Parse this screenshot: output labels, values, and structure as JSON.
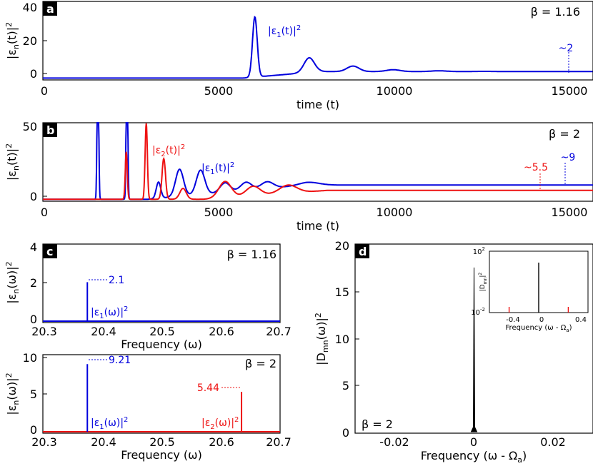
{
  "colors": {
    "series1": "#0000dd",
    "series2": "#ee1111",
    "black": "#000000"
  },
  "chart_data": [
    {
      "panel": "a",
      "type": "line",
      "xlabel": "time (t)",
      "ylabel": "|εn(t)|2",
      "xlim": [
        0,
        15700
      ],
      "ylim": [
        -3,
        40
      ],
      "xticks": [
        "0",
        "5000",
        "10000",
        "15000"
      ],
      "yticks": [
        "0",
        "20",
        "40"
      ],
      "beta_label": "β = 1.16",
      "series": [
        {
          "name": "|ε1(t)|2",
          "color": "#0000dd",
          "peaks": [
            [
              6050,
              33
            ],
            [
              7600,
              10
            ],
            [
              8850,
              5
            ],
            [
              10000,
              3
            ],
            [
              11300,
              2.4
            ],
            [
              12600,
              2.1
            ],
            [
              13900,
              2.0
            ],
            [
              15100,
              2.0
            ]
          ],
          "rise_start": 5700,
          "baseline": -2,
          "final": 2
        }
      ],
      "annotations": [
        {
          "text": "|ε1(t)|2",
          "x": 6250,
          "y": 28
        },
        {
          "text": "~2",
          "x": 15000,
          "y": 2
        }
      ]
    },
    {
      "panel": "b",
      "type": "line",
      "xlabel": "time (t)",
      "ylabel": "|εn(t)|2",
      "xlim": [
        0,
        15700
      ],
      "ylim": [
        -3,
        55
      ],
      "xticks": [
        "0",
        "5000",
        "10000",
        "15000"
      ],
      "yticks": [
        "0",
        "50"
      ],
      "beta_label": "β = 2",
      "series": [
        {
          "name": "|ε1(t)|2",
          "color": "#0000dd"
        },
        {
          "name": "|ε2(t)|2",
          "color": "#ee1111"
        }
      ],
      "annotations": [
        {
          "text": "|ε2(t)|2"
        },
        {
          "text": "|ε1(t)|2"
        },
        {
          "text": "~5.5",
          "x": 14000,
          "y": 5.5
        },
        {
          "text": "~9",
          "x": 14700,
          "y": 9
        }
      ]
    },
    {
      "panel": "c",
      "type": "line",
      "xlabel": "Frequency (ω)",
      "ylabel": "|εn(ω)|2",
      "xlim": [
        20.3,
        20.7
      ],
      "ylim": [
        0,
        4
      ],
      "xticks": [
        "20.3",
        "20.4",
        "20.5",
        "20.6",
        "20.7"
      ],
      "yticks": [
        "0",
        "2",
        "4"
      ],
      "beta_label": "β = 1.16",
      "series": [
        {
          "name": "|ε1(ω)|2",
          "color": "#0000dd",
          "x": [
            20.375
          ],
          "values": [
            2.1
          ]
        }
      ],
      "annotations": [
        {
          "text": "2.1"
        },
        {
          "text": "|ε1(ω)|2"
        }
      ]
    },
    {
      "panel": "c2",
      "type": "line",
      "xlabel": "Frequency (ω)",
      "ylabel": "|εn(ω)|2",
      "xlim": [
        20.3,
        20.7
      ],
      "ylim": [
        0,
        10.5
      ],
      "xticks": [
        "20.3",
        "20.4",
        "20.5",
        "20.6",
        "20.7"
      ],
      "yticks": [
        "0",
        "5",
        "10"
      ],
      "beta_label": "β = 2",
      "series": [
        {
          "name": "|ε1(ω)|2",
          "color": "#0000dd",
          "x": [
            20.375
          ],
          "values": [
            9.21
          ]
        },
        {
          "name": "|ε2(ω)|2",
          "color": "#ee1111",
          "x": [
            20.635
          ],
          "values": [
            5.44
          ]
        }
      ],
      "annotations": [
        {
          "text": "9.21"
        },
        {
          "text": "5.44"
        },
        {
          "text": "|ε1(ω)|2"
        },
        {
          "text": "|ε2(ω)|2"
        }
      ]
    },
    {
      "panel": "d",
      "type": "line",
      "xlabel": "Frequency (ω - Ωa)",
      "ylabel": "|Dmn(ω)|2",
      "xlim": [
        -0.03,
        0.03
      ],
      "ylim": [
        0,
        20
      ],
      "xticks": [
        "-0.02",
        "0",
        "0.02"
      ],
      "yticks": [
        "0",
        "5",
        "10",
        "15",
        "20"
      ],
      "beta_label": "β = 2",
      "series": [
        {
          "name": "|Dmn|2",
          "color": "#000000",
          "x": [
            0
          ],
          "values": [
            17.5
          ]
        }
      ],
      "inset": {
        "xlabel": "Frequency (ω - Ωa)",
        "ylabel": "|Dmn|2",
        "xlim": [
          -0.45,
          0.45
        ],
        "yscale": "log",
        "xticks": [
          "-0.4",
          "0",
          "0.4"
        ],
        "ytick_base": "10",
        "ytick_exps": [
          "2",
          "-2"
        ],
        "lines": [
          {
            "x": -0.27,
            "color": "#ee1111"
          },
          {
            "x": 0,
            "color": "#000000"
          },
          {
            "x": 0.27,
            "color": "#ee1111"
          }
        ]
      }
    }
  ]
}
